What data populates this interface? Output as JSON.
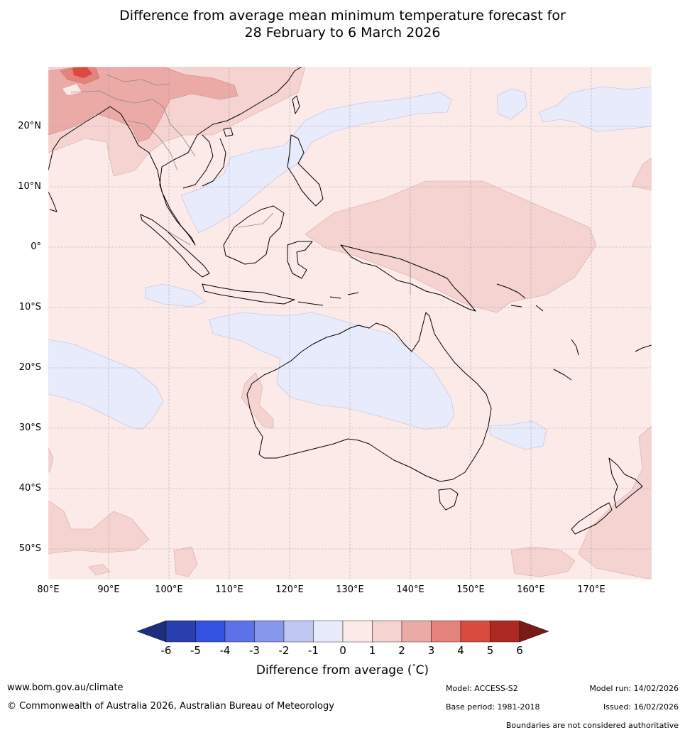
{
  "title": {
    "line1": "Difference from average mean minimum temperature forecast for",
    "line2": "28 February to 6 March 2026"
  },
  "latitude_labels": [
    "20°N",
    "10°N",
    "0°",
    "10°S",
    "20°S",
    "30°S",
    "40°S",
    "50°S"
  ],
  "longitude_labels": [
    "80°E",
    "90°E",
    "100°E",
    "110°E",
    "120°E",
    "130°E",
    "140°E",
    "150°E",
    "160°E",
    "170°E"
  ],
  "colorbar": {
    "ticks": [
      "-6",
      "-5",
      "-4",
      "-3",
      "-2",
      "-1",
      "0",
      "1",
      "2",
      "3",
      "4",
      "5",
      "6"
    ],
    "colors": [
      "#1f2d7e",
      "#2a3fae",
      "#3452e0",
      "#5c72e6",
      "#8798ec",
      "#c0c7f2",
      "#e8ebfb",
      "#fbeae8",
      "#f4d3d1",
      "#ebaaa6",
      "#e4827c",
      "#d94b3f",
      "#ad2a22",
      "#7a1b16"
    ],
    "label": "Difference from average (",
    "unit_symbol": "°",
    "unit": "C)"
  },
  "footer": {
    "website": "www.bom.gov.au/climate",
    "copyright": "© Commonwealth of Australia 2026, Australian Bureau of Meteorology",
    "model": "Model: ACCESS-S2",
    "base_period": "Base period: 1981-2018",
    "model_run": "Model run: 14/02/2026",
    "issued": "Issued: 16/02/2026",
    "disclaimer": "Boundaries are not considered authoritative"
  }
}
